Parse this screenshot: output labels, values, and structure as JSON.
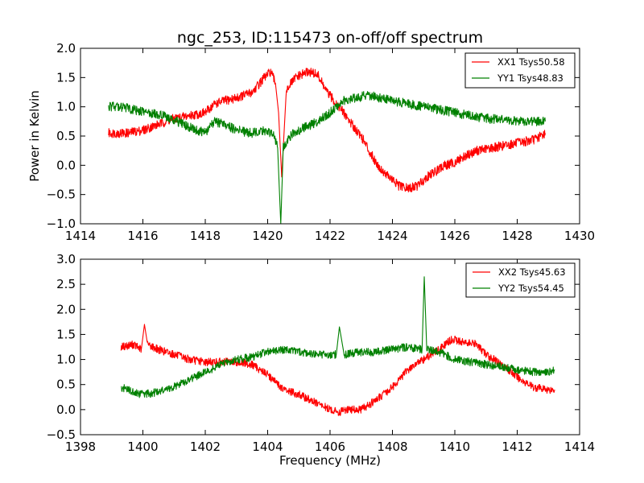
{
  "chart_data": [
    {
      "type": "line",
      "title": "ngc_253, ID:115473 on-off/off spectrum",
      "xlabel": "",
      "ylabel": "Power in Kelvin",
      "xlim": [
        1414,
        1430
      ],
      "ylim": [
        -1.0,
        2.0
      ],
      "xticks": [
        1414,
        1416,
        1418,
        1420,
        1422,
        1424,
        1426,
        1428,
        1430
      ],
      "xtick_labels": [
        "1414",
        "1416",
        "1418",
        "1420",
        "1422",
        "1424",
        "1426",
        "1428",
        "1430"
      ],
      "yticks": [
        -1.0,
        -0.5,
        0.0,
        0.5,
        1.0,
        1.5,
        2.0
      ],
      "ytick_labels": [
        "−1.0",
        "−0.5",
        "0.0",
        "0.5",
        "1.0",
        "1.5",
        "2.0"
      ],
      "grid": false,
      "legend_position": "top-right",
      "series": [
        {
          "name": "XX1 Tsys50.58",
          "color": "#ff0000",
          "x": [
            1414.9,
            1415.5,
            1416.0,
            1416.5,
            1417.0,
            1417.5,
            1418.0,
            1418.3,
            1418.6,
            1419.0,
            1419.5,
            1419.9,
            1420.1,
            1420.25,
            1420.35,
            1420.45,
            1420.6,
            1420.9,
            1421.3,
            1421.6,
            1421.9,
            1422.3,
            1422.7,
            1423.0,
            1423.3,
            1423.6,
            1423.9,
            1424.2,
            1424.5,
            1424.8,
            1425.1,
            1425.4,
            1425.7,
            1426.0,
            1426.3,
            1426.7,
            1427.2,
            1427.7,
            1428.2,
            1428.6,
            1428.9
          ],
          "y": [
            0.55,
            0.55,
            0.6,
            0.7,
            0.8,
            0.85,
            0.9,
            1.05,
            1.1,
            1.15,
            1.25,
            1.5,
            1.6,
            1.4,
            0.9,
            -0.2,
            1.3,
            1.5,
            1.6,
            1.55,
            1.25,
            1.0,
            0.7,
            0.5,
            0.2,
            -0.05,
            -0.2,
            -0.35,
            -0.4,
            -0.35,
            -0.2,
            -0.1,
            0.0,
            0.05,
            0.15,
            0.25,
            0.3,
            0.35,
            0.4,
            0.45,
            0.55
          ]
        },
        {
          "name": "YY1 Tsys48.83",
          "color": "#008000",
          "x": [
            1414.9,
            1415.3,
            1415.7,
            1416.2,
            1416.7,
            1417.1,
            1417.5,
            1418.0,
            1418.3,
            1418.6,
            1419.0,
            1419.5,
            1419.9,
            1420.2,
            1420.32,
            1420.42,
            1420.5,
            1420.8,
            1421.2,
            1421.6,
            1422.0,
            1422.4,
            1422.8,
            1423.2,
            1423.6,
            1424.0,
            1424.5,
            1425.0,
            1425.5,
            1426.0,
            1426.5,
            1427.0,
            1427.5,
            1428.0,
            1428.5,
            1428.9
          ],
          "y": [
            1.0,
            1.0,
            0.95,
            0.9,
            0.85,
            0.75,
            0.65,
            0.55,
            0.75,
            0.7,
            0.6,
            0.55,
            0.6,
            0.5,
            0.3,
            -1.0,
            0.3,
            0.55,
            0.65,
            0.75,
            0.9,
            1.1,
            1.15,
            1.2,
            1.15,
            1.1,
            1.05,
            1.0,
            0.95,
            0.9,
            0.85,
            0.8,
            0.78,
            0.75,
            0.75,
            0.75
          ]
        }
      ]
    },
    {
      "type": "line",
      "title": "",
      "xlabel": "Frequency (MHz)",
      "ylabel": "",
      "xlim": [
        1398,
        1414
      ],
      "ylim": [
        -0.5,
        3.0
      ],
      "xticks": [
        1398,
        1400,
        1402,
        1404,
        1406,
        1408,
        1410,
        1412,
        1414
      ],
      "xtick_labels": [
        "1398",
        "1400",
        "1402",
        "1404",
        "1406",
        "1408",
        "1410",
        "1412",
        "1414"
      ],
      "yticks": [
        -0.5,
        0.0,
        0.5,
        1.0,
        1.5,
        2.0,
        2.5,
        3.0
      ],
      "ytick_labels": [
        "−0.5",
        "0.0",
        "0.5",
        "1.0",
        "1.5",
        "2.0",
        "2.5",
        "3.0"
      ],
      "grid": false,
      "legend_position": "top-right",
      "series": [
        {
          "name": "XX2 Tsys45.63",
          "color": "#ff0000",
          "x": [
            1399.3,
            1399.7,
            1399.95,
            1400.05,
            1400.15,
            1400.5,
            1401.0,
            1401.5,
            1402.0,
            1402.5,
            1403.0,
            1403.5,
            1404.0,
            1404.5,
            1405.0,
            1405.5,
            1406.0,
            1406.3,
            1406.5,
            1407.0,
            1407.5,
            1408.0,
            1408.5,
            1409.0,
            1409.5,
            1409.9,
            1410.3,
            1410.7,
            1411.0,
            1411.5,
            1412.0,
            1412.5,
            1413.0,
            1413.2
          ],
          "y": [
            1.25,
            1.3,
            1.2,
            1.7,
            1.3,
            1.2,
            1.1,
            1.0,
            0.95,
            0.95,
            0.95,
            0.9,
            0.7,
            0.4,
            0.3,
            0.15,
            0.0,
            -0.05,
            0.0,
            0.0,
            0.2,
            0.45,
            0.8,
            1.0,
            1.2,
            1.4,
            1.35,
            1.3,
            1.1,
            0.9,
            0.65,
            0.45,
            0.4,
            0.4
          ]
        },
        {
          "name": "YY2 Tsys54.45",
          "color": "#008000",
          "x": [
            1399.3,
            1399.7,
            1400.0,
            1400.5,
            1401.0,
            1401.5,
            1402.0,
            1402.5,
            1403.0,
            1403.5,
            1404.0,
            1404.5,
            1405.0,
            1405.5,
            1406.0,
            1406.2,
            1406.3,
            1406.45,
            1407.0,
            1407.5,
            1408.0,
            1408.5,
            1408.95,
            1409.02,
            1409.1,
            1409.5,
            1410.0,
            1410.5,
            1411.0,
            1411.5,
            1412.0,
            1412.5,
            1413.0,
            1413.2
          ],
          "y": [
            0.45,
            0.35,
            0.3,
            0.35,
            0.45,
            0.6,
            0.75,
            0.9,
            1.0,
            1.05,
            1.15,
            1.2,
            1.15,
            1.1,
            1.1,
            1.1,
            1.65,
            1.1,
            1.15,
            1.15,
            1.2,
            1.25,
            1.2,
            2.65,
            1.2,
            1.15,
            1.0,
            0.95,
            0.9,
            0.85,
            0.8,
            0.75,
            0.75,
            0.8
          ]
        }
      ]
    }
  ]
}
